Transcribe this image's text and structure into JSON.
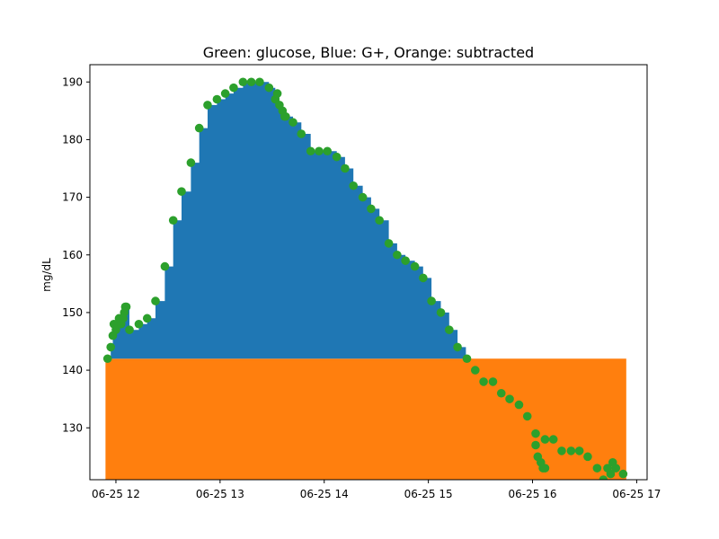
{
  "chart_data": {
    "type": "area",
    "title": "Green: glucose, Blue: G+, Orange: subtracted",
    "xlabel": "",
    "ylabel": "mg/dL",
    "x_unit": "hours since 06-25 00:00",
    "xlim": [
      11.75,
      17.1
    ],
    "ylim": [
      121,
      193
    ],
    "baseline": 142,
    "grid": false,
    "x_ticks": [
      {
        "value": 12,
        "label": "06-25 12"
      },
      {
        "value": 13,
        "label": "06-25 13"
      },
      {
        "value": 14,
        "label": "06-25 14"
      },
      {
        "value": 15,
        "label": "06-25 15"
      },
      {
        "value": 16,
        "label": "06-25 16"
      },
      {
        "value": 17,
        "label": "06-25 17"
      }
    ],
    "y_ticks": [
      130,
      140,
      150,
      160,
      170,
      180,
      190
    ],
    "colors": {
      "glucose": "#2ca02c",
      "g_plus": "#1f77b4",
      "subtracted": "#ff7f0e"
    },
    "subtracted_range": [
      11.9,
      16.9
    ],
    "series": [
      {
        "name": "glucose",
        "points": [
          [
            11.92,
            142
          ],
          [
            11.95,
            144
          ],
          [
            11.97,
            146
          ],
          [
            11.98,
            148
          ],
          [
            12.0,
            147
          ],
          [
            12.02,
            148
          ],
          [
            12.03,
            149
          ],
          [
            12.05,
            148
          ],
          [
            12.07,
            149
          ],
          [
            12.08,
            150
          ],
          [
            12.09,
            151
          ],
          [
            12.1,
            151
          ],
          [
            12.13,
            147
          ],
          [
            12.22,
            148
          ],
          [
            12.3,
            149
          ],
          [
            12.38,
            152
          ],
          [
            12.47,
            158
          ],
          [
            12.55,
            166
          ],
          [
            12.63,
            171
          ],
          [
            12.72,
            176
          ],
          [
            12.8,
            182
          ],
          [
            12.88,
            186
          ],
          [
            12.97,
            187
          ],
          [
            13.05,
            188
          ],
          [
            13.13,
            189
          ],
          [
            13.22,
            190
          ],
          [
            13.3,
            190
          ],
          [
            13.38,
            190
          ],
          [
            13.47,
            189
          ],
          [
            13.53,
            187
          ],
          [
            13.55,
            188
          ],
          [
            13.57,
            186
          ],
          [
            13.6,
            185
          ],
          [
            13.62,
            184
          ],
          [
            13.63,
            184
          ],
          [
            13.7,
            183
          ],
          [
            13.78,
            181
          ],
          [
            13.87,
            178
          ],
          [
            13.95,
            178
          ],
          [
            14.03,
            178
          ],
          [
            14.12,
            177
          ],
          [
            14.2,
            175
          ],
          [
            14.28,
            172
          ],
          [
            14.37,
            170
          ],
          [
            14.45,
            168
          ],
          [
            14.53,
            166
          ],
          [
            14.62,
            162
          ],
          [
            14.7,
            160
          ],
          [
            14.78,
            159
          ],
          [
            14.87,
            158
          ],
          [
            14.95,
            156
          ],
          [
            15.03,
            152
          ],
          [
            15.12,
            150
          ],
          [
            15.2,
            147
          ],
          [
            15.28,
            144
          ],
          [
            15.37,
            142
          ],
          [
            15.45,
            140
          ],
          [
            15.53,
            138
          ],
          [
            15.62,
            138
          ],
          [
            15.7,
            136
          ],
          [
            15.78,
            135
          ],
          [
            15.87,
            134
          ],
          [
            15.95,
            132
          ],
          [
            16.03,
            129
          ],
          [
            16.03,
            127
          ],
          [
            16.05,
            125
          ],
          [
            16.08,
            124
          ],
          [
            16.1,
            123
          ],
          [
            16.12,
            128
          ],
          [
            16.12,
            123
          ],
          [
            16.2,
            128
          ],
          [
            16.28,
            126
          ],
          [
            16.37,
            126
          ],
          [
            16.45,
            126
          ],
          [
            16.53,
            125
          ],
          [
            16.62,
            123
          ],
          [
            16.68,
            121
          ],
          [
            16.72,
            123
          ],
          [
            16.75,
            122
          ],
          [
            16.77,
            124
          ],
          [
            16.8,
            123
          ],
          [
            16.87,
            122
          ]
        ]
      },
      {
        "name": "G+",
        "note": "glucose above baseline, step fill"
      },
      {
        "name": "subtracted",
        "note": "constant baseline region"
      }
    ]
  }
}
